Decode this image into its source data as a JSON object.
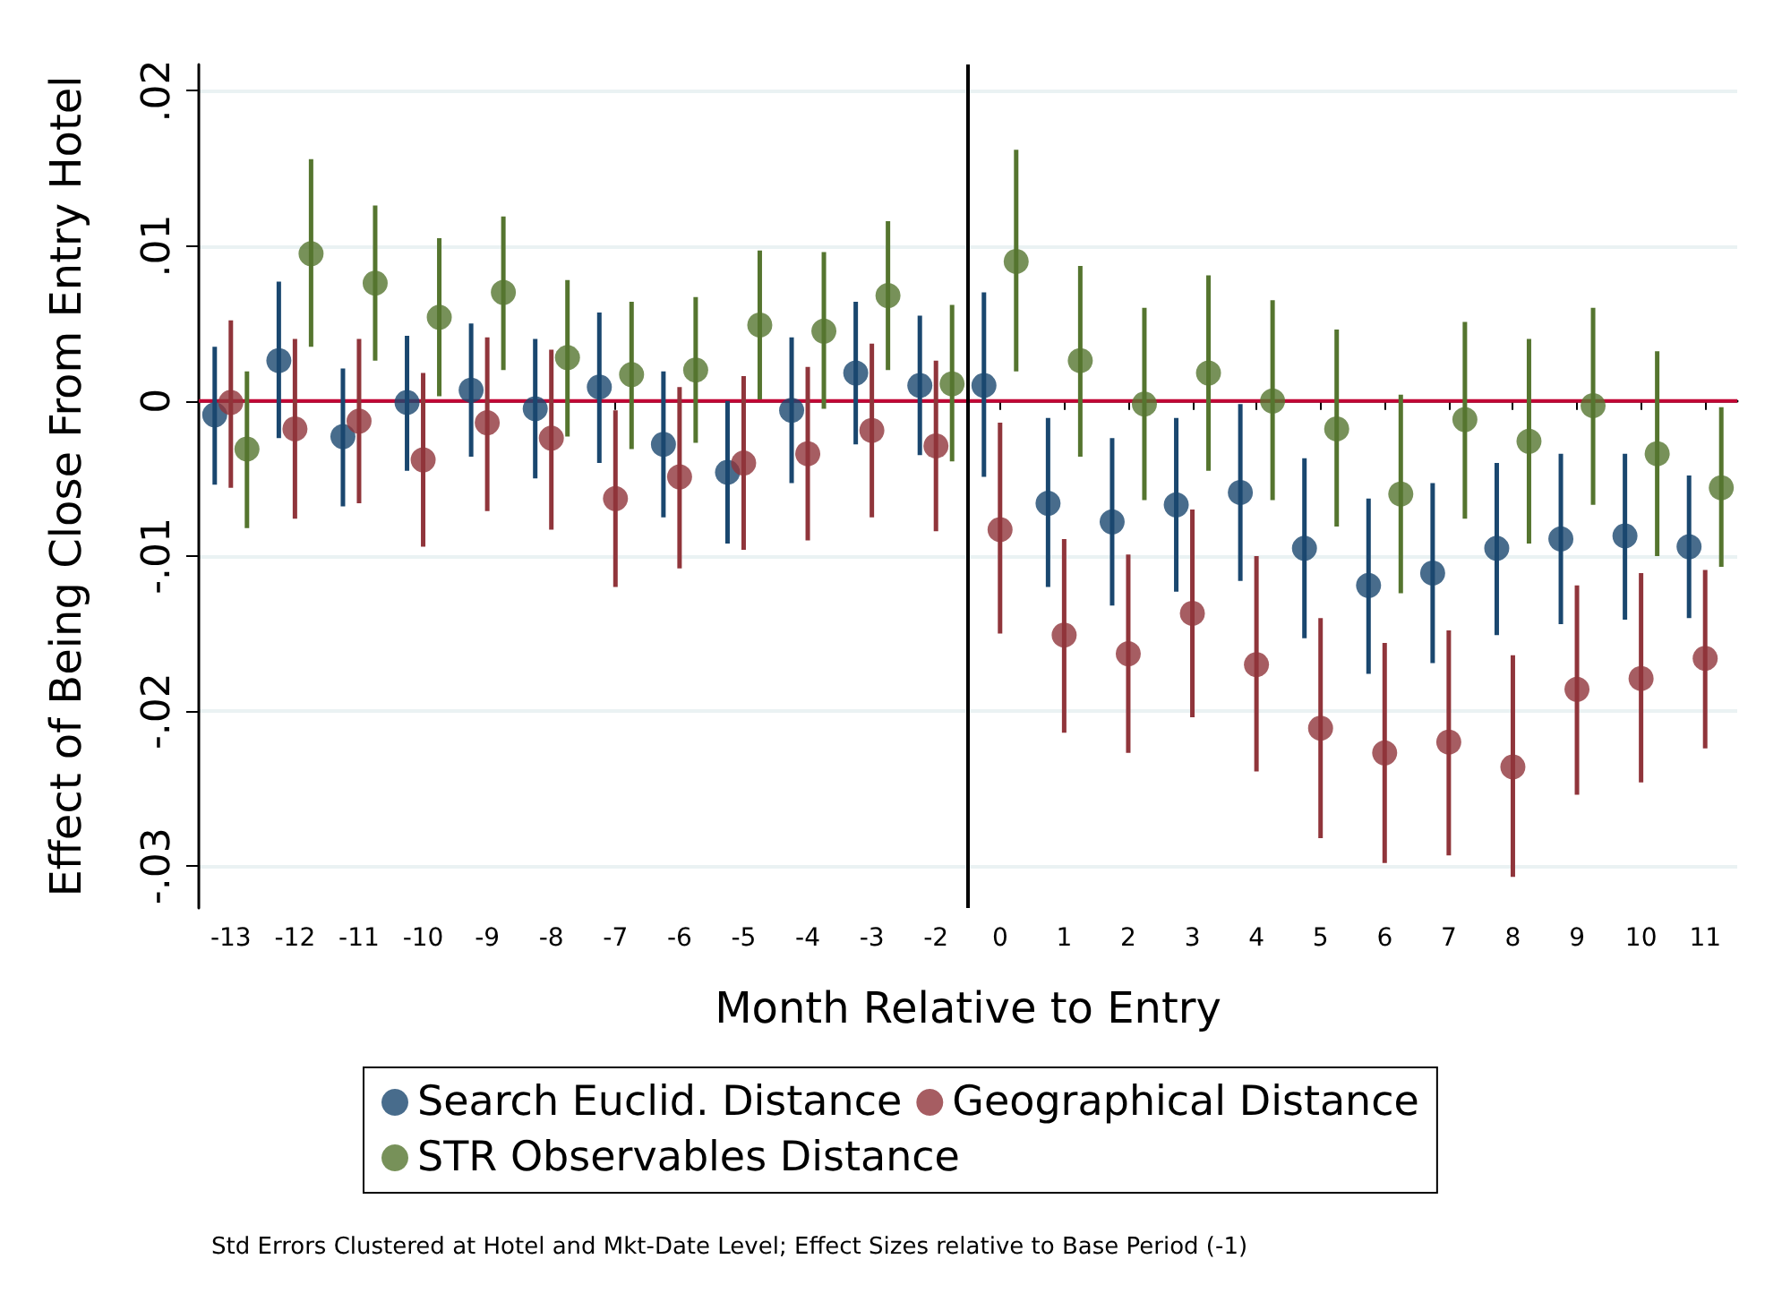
{
  "chart_data": {
    "type": "scatter",
    "xlabel": "Month Relative to Entry",
    "ylabel": "Effect of Being Close From Entry Hotel",
    "categories": [
      "-13",
      "-12",
      "-11",
      "-10",
      "-9",
      "-8",
      "-7",
      "-6",
      "-5",
      "-4",
      "-3",
      "-2",
      "0",
      "1",
      "2",
      "3",
      "4",
      "5",
      "6",
      "7",
      "8",
      "9",
      "10",
      "11"
    ],
    "series": [
      {
        "name": "Search Euclid. Distance",
        "color": "#1a476f",
        "values": [
          -0.0009,
          0.0026,
          -0.0023,
          -0.0001,
          0.0007,
          -0.0005,
          0.0009,
          -0.0028,
          -0.0046,
          -0.0006,
          0.0018,
          0.001,
          0.001,
          -0.0066,
          -0.0078,
          -0.0067,
          -0.0059,
          -0.0095,
          -0.0119,
          -0.0111,
          -0.0095,
          -0.0089,
          -0.0087,
          -0.0094
        ],
        "errors": [
          [
            -0.0054,
            0.0035
          ],
          [
            -0.0024,
            0.0077
          ],
          [
            -0.0068,
            0.0021
          ],
          [
            -0.0045,
            0.0042
          ],
          [
            -0.0036,
            0.005
          ],
          [
            -0.005,
            0.004
          ],
          [
            -0.004,
            0.0057
          ],
          [
            -0.0075,
            0.0019
          ],
          [
            -0.0092,
            0.0
          ],
          [
            -0.0053,
            0.0041
          ],
          [
            -0.0028,
            0.0064
          ],
          [
            -0.0035,
            0.0055
          ],
          [
            -0.0049,
            0.007
          ],
          [
            -0.012,
            -0.0011
          ],
          [
            -0.0132,
            -0.0024
          ],
          [
            -0.0123,
            -0.0011
          ],
          [
            -0.0116,
            -0.0002
          ],
          [
            -0.0153,
            -0.0037
          ],
          [
            -0.0176,
            -0.0063
          ],
          [
            -0.0169,
            -0.0053
          ],
          [
            -0.0151,
            -0.004
          ],
          [
            -0.0144,
            -0.0034
          ],
          [
            -0.0141,
            -0.0034
          ],
          [
            -0.014,
            -0.0048
          ]
        ]
      },
      {
        "name": "Geographical Distance",
        "color": "#90353b",
        "values": [
          -0.0001,
          -0.0018,
          -0.0013,
          -0.0038,
          -0.0014,
          -0.0024,
          -0.0063,
          -0.0049,
          -0.004,
          -0.0034,
          -0.0019,
          -0.0029,
          -0.0083,
          -0.0151,
          -0.0163,
          -0.0137,
          -0.017,
          -0.0211,
          -0.0227,
          -0.022,
          -0.0236,
          -0.0186,
          -0.0179,
          -0.0166
        ],
        "errors": [
          [
            -0.0056,
            0.0052
          ],
          [
            -0.0076,
            0.004
          ],
          [
            -0.0066,
            0.004
          ],
          [
            -0.0094,
            0.0018
          ],
          [
            -0.0071,
            0.0041
          ],
          [
            -0.0083,
            0.0033
          ],
          [
            -0.012,
            -0.0006
          ],
          [
            -0.0108,
            0.0009
          ],
          [
            -0.0096,
            0.0016
          ],
          [
            -0.009,
            0.0022
          ],
          [
            -0.0075,
            0.0037
          ],
          [
            -0.0084,
            0.0026
          ],
          [
            -0.015,
            -0.0014
          ],
          [
            -0.0214,
            -0.0089
          ],
          [
            -0.0227,
            -0.0099
          ],
          [
            -0.0204,
            -0.007
          ],
          [
            -0.0239,
            -0.01
          ],
          [
            -0.0282,
            -0.014
          ],
          [
            -0.0298,
            -0.0156
          ],
          [
            -0.0293,
            -0.0148
          ],
          [
            -0.0307,
            -0.0164
          ],
          [
            -0.0254,
            -0.0119
          ],
          [
            -0.0246,
            -0.0111
          ],
          [
            -0.0224,
            -0.0109
          ]
        ]
      },
      {
        "name": "STR Observables Distance",
        "color": "#55752f",
        "values": [
          -0.0031,
          0.0095,
          0.0076,
          0.0054,
          0.007,
          0.0028,
          0.0017,
          0.002,
          0.0049,
          0.0045,
          0.0068,
          0.0011,
          0.009,
          0.0026,
          -0.0002,
          0.0018,
          0.0,
          -0.0018,
          -0.006,
          -0.0012,
          -0.0026,
          -0.0003,
          -0.0034,
          -0.0056
        ],
        "errors": [
          [
            -0.0082,
            0.0019
          ],
          [
            0.0035,
            0.0156
          ],
          [
            0.0026,
            0.0126
          ],
          [
            0.0003,
            0.0105
          ],
          [
            0.002,
            0.0119
          ],
          [
            -0.0023,
            0.0078
          ],
          [
            -0.0031,
            0.0064
          ],
          [
            -0.0027,
            0.0067
          ],
          [
            0.0001,
            0.0097
          ],
          [
            -0.0005,
            0.0096
          ],
          [
            0.002,
            0.0116
          ],
          [
            -0.0039,
            0.0062
          ],
          [
            0.0019,
            0.0162
          ],
          [
            -0.0036,
            0.0087
          ],
          [
            -0.0064,
            0.006
          ],
          [
            -0.0045,
            0.0081
          ],
          [
            -0.0064,
            0.0065
          ],
          [
            -0.0081,
            0.0046
          ],
          [
            -0.0124,
            0.0004
          ],
          [
            -0.0076,
            0.0051
          ],
          [
            -0.0092,
            0.004
          ],
          [
            -0.0067,
            0.006
          ],
          [
            -0.01,
            0.0032
          ],
          [
            -0.0107,
            -0.0004
          ]
        ]
      }
    ],
    "ylim": [
      -0.0327,
      0.0217
    ],
    "yticks": [
      {
        "value": -0.03,
        "label": "-.03"
      },
      {
        "value": -0.02,
        "label": "-.02"
      },
      {
        "value": -0.01,
        "label": "-.01"
      },
      {
        "value": 0,
        "label": "0"
      },
      {
        "value": 0.01,
        "label": ".01"
      },
      {
        "value": 0.02,
        "label": ".02"
      }
    ],
    "ref_lines": [
      {
        "axis": "y",
        "value": 0,
        "color": "#c10534"
      },
      {
        "axis": "x",
        "value": "0",
        "color": "#000000"
      }
    ],
    "grid": "y",
    "legend": "bottom",
    "marker": "circle",
    "annotations": [
      "Std Errors Clustered at Hotel and Mkt-Date Level; Effect Sizes relative to Base Period (-1)"
    ]
  }
}
